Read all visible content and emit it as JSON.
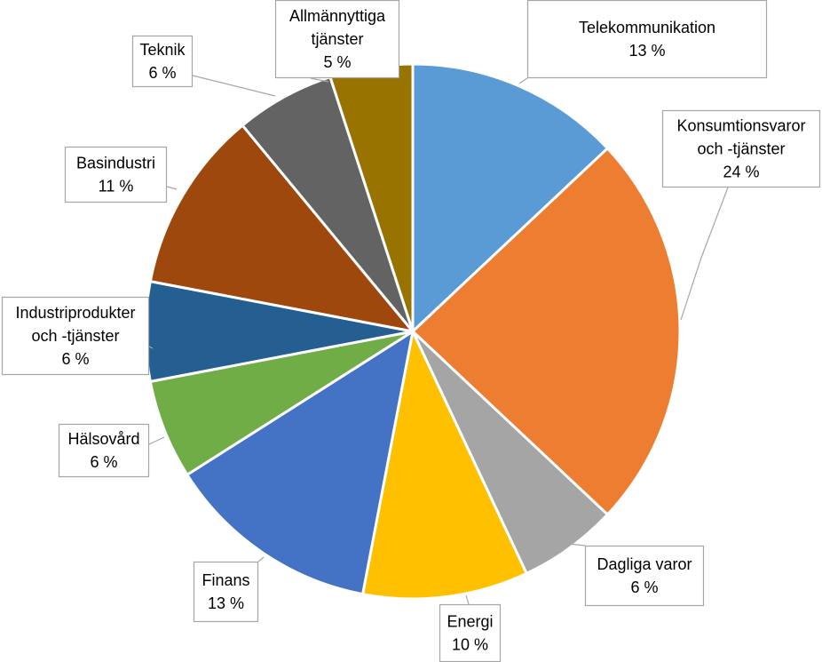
{
  "chart_data": {
    "type": "pie",
    "title": "",
    "legend": "none",
    "slices": [
      {
        "label": "Telekommunikation",
        "value": 13,
        "value_label": "13 %",
        "color": "#5B9BD5"
      },
      {
        "label": "Konsumtionsvaror och -tjänster",
        "value": 24,
        "value_label": "24 %",
        "color": "#ED7D31"
      },
      {
        "label": "Dagliga varor",
        "value": 6,
        "value_label": "6 %",
        "color": "#A5A5A5"
      },
      {
        "label": "Energi",
        "value": 10,
        "value_label": "10 %",
        "color": "#FFC000"
      },
      {
        "label": "Finans",
        "value": 13,
        "value_label": "13 %",
        "color": "#4472C4"
      },
      {
        "label": "Hälsovård",
        "value": 6,
        "value_label": "6 %",
        "color": "#70AD47"
      },
      {
        "label": "Industriprodukter och -tjänster",
        "value": 6,
        "value_label": "6 %",
        "color": "#255E91"
      },
      {
        "label": "Basindustri",
        "value": 11,
        "value_label": "11 %",
        "color": "#9E480E"
      },
      {
        "label": "Teknik",
        "value": 6,
        "value_label": "6 %",
        "color": "#636363"
      },
      {
        "label": "Allmännyttiga tjänster",
        "value": 5,
        "value_label": "5 %",
        "color": "#997300"
      }
    ]
  }
}
